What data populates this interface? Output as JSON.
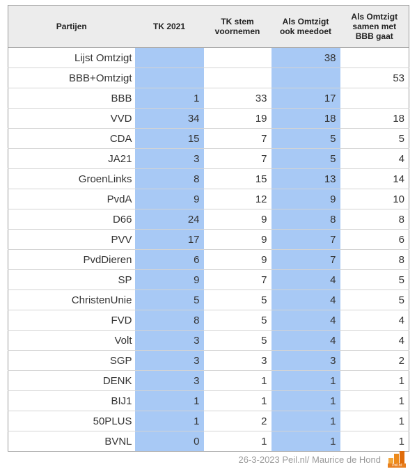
{
  "table": {
    "headers": [
      "Partijen",
      "TK 2021",
      "TK stem voornemen",
      "Als Omtzigt ook meedoet",
      "Als Omtzigt samen met BBB gaat"
    ],
    "rows": [
      [
        "Lijst Omtzigt",
        "",
        "",
        "38",
        ""
      ],
      [
        "BBB+Omtzigt",
        "",
        "",
        "",
        "53"
      ],
      [
        "BBB",
        "1",
        "33",
        "17",
        ""
      ],
      [
        "VVD",
        "34",
        "19",
        "18",
        "18"
      ],
      [
        "CDA",
        "15",
        "7",
        "5",
        "5"
      ],
      [
        "JA21",
        "3",
        "7",
        "5",
        "4"
      ],
      [
        "GroenLinks",
        "8",
        "15",
        "13",
        "14"
      ],
      [
        "PvdA",
        "9",
        "12",
        "9",
        "10"
      ],
      [
        "D66",
        "24",
        "9",
        "8",
        "8"
      ],
      [
        "PVV",
        "17",
        "9",
        "7",
        "6"
      ],
      [
        "PvdDieren",
        "6",
        "9",
        "7",
        "8"
      ],
      [
        "SP",
        "9",
        "7",
        "4",
        "5"
      ],
      [
        "ChristenUnie",
        "5",
        "5",
        "4",
        "5"
      ],
      [
        "FVD",
        "8",
        "5",
        "4",
        "4"
      ],
      [
        "Volt",
        "3",
        "5",
        "4",
        "4"
      ],
      [
        "SGP",
        "3",
        "3",
        "3",
        "2"
      ],
      [
        "DENK",
        "3",
        "1",
        "1",
        "1"
      ],
      [
        "BIJ1",
        "1",
        "1",
        "1",
        "1"
      ],
      [
        "50PLUS",
        "1",
        "2",
        "1",
        "1"
      ],
      [
        "BVNL",
        "0",
        "1",
        "1",
        "1"
      ]
    ],
    "highlight_columns": [
      1,
      3
    ]
  },
  "colors": {
    "highlight": "#a8c9f5",
    "header_bg": "#ececec",
    "logo_orange": "#e88020"
  },
  "footer": {
    "credit": "26-3-2023 Peil.nl/ Maurice de Hond",
    "logo_icon": "peil-bar-chart-logo",
    "logo_text": "Peil.nl"
  }
}
